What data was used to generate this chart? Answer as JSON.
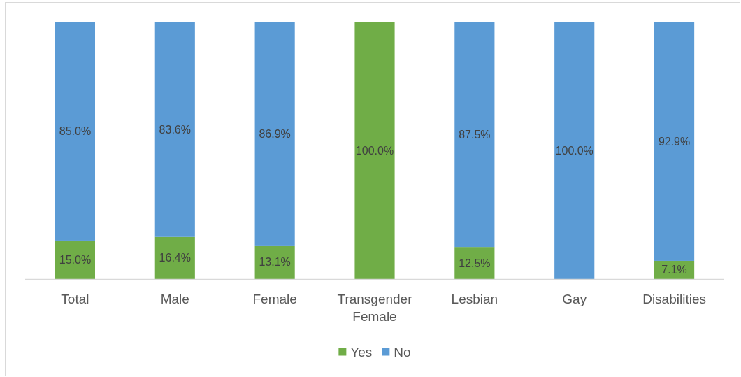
{
  "chart_data": {
    "type": "bar",
    "stacked": true,
    "categories": [
      "Total",
      "Male",
      "Female",
      "Transgender Female",
      "Lesbian",
      "Gay",
      "Disabilities"
    ],
    "series": [
      {
        "name": "Yes",
        "color": "#70ad47",
        "values": [
          15.0,
          16.4,
          13.1,
          100.0,
          12.5,
          0,
          7.1
        ],
        "value_labels": [
          "15.0%",
          "16.4%",
          "13.1%",
          "100.0%",
          "12.5%",
          null,
          "7.1%"
        ]
      },
      {
        "name": "No",
        "color": "#5b9bd5",
        "values": [
          85.0,
          83.6,
          86.9,
          0,
          87.5,
          100.0,
          92.9
        ],
        "value_labels": [
          "85.0%",
          "83.6%",
          "86.9%",
          null,
          "87.5%",
          "100.0%",
          "92.9%"
        ]
      }
    ],
    "ylim": [
      0,
      100
    ],
    "tick_labels": "x",
    "legend": "bottom"
  }
}
